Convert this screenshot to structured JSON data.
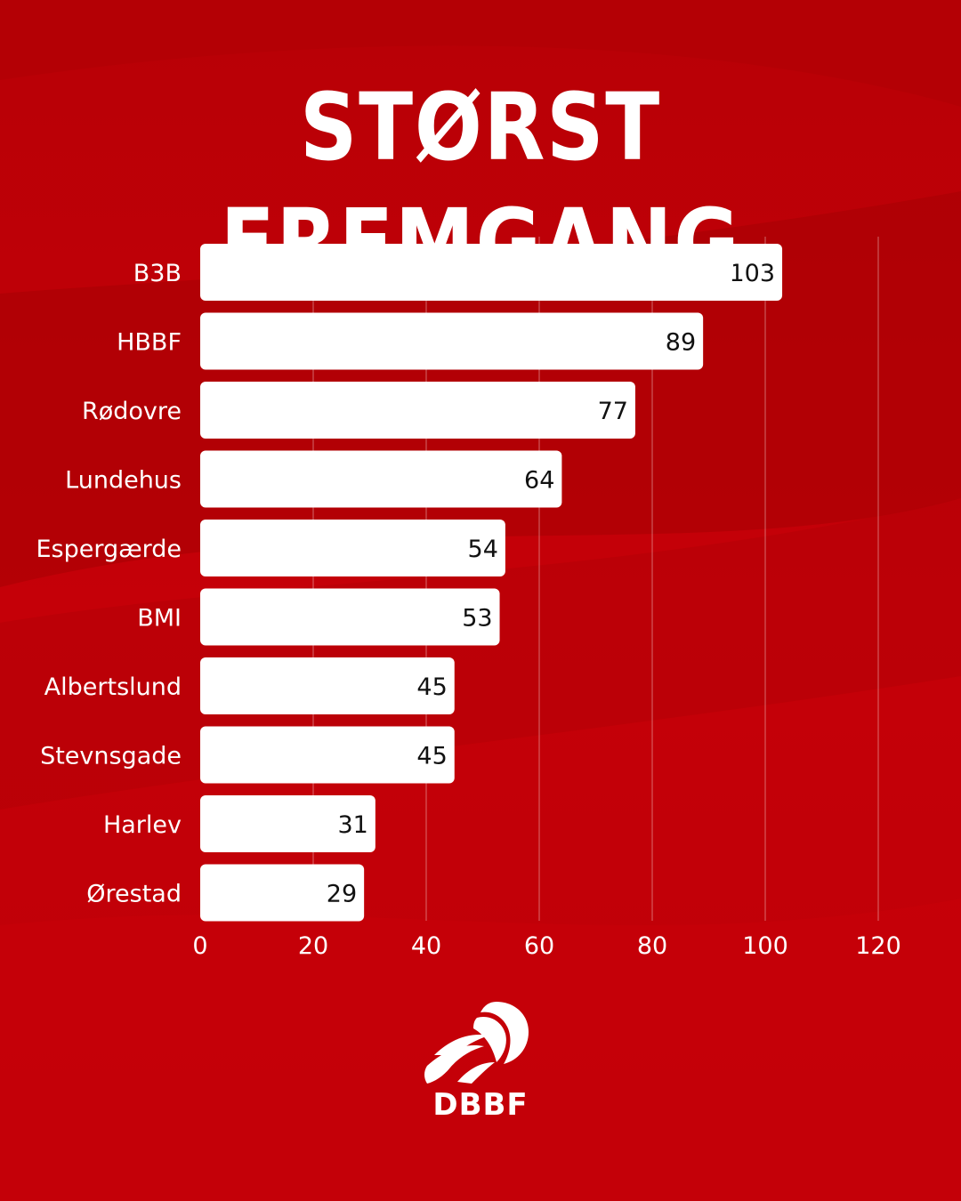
{
  "page": {
    "title": "STØRST FREMGANG",
    "brand": "DBBF"
  },
  "colors": {
    "background": "#c40007",
    "background_dark": "#a80005",
    "bar": "#ffffff",
    "text_light": "#ffffff",
    "text_dark": "#111111"
  },
  "icons": {
    "logo": "basketball-player-logo-icon"
  },
  "chart_data": {
    "type": "bar",
    "orientation": "horizontal",
    "title": "STØRST FREMGANG",
    "categories": [
      "B3B",
      "HBBF",
      "Rødovre",
      "Lundehus",
      "Espergærde",
      "BMI",
      "Albertslund",
      "Stevnsgade",
      "Harlev",
      "Ørestad"
    ],
    "values": [
      103,
      89,
      77,
      64,
      54,
      53,
      45,
      45,
      31,
      29
    ],
    "xlim": [
      0,
      120
    ],
    "xticks": [
      0,
      20,
      40,
      60,
      80,
      100,
      120
    ],
    "grid": true,
    "legend": "none",
    "data_labels": true
  }
}
